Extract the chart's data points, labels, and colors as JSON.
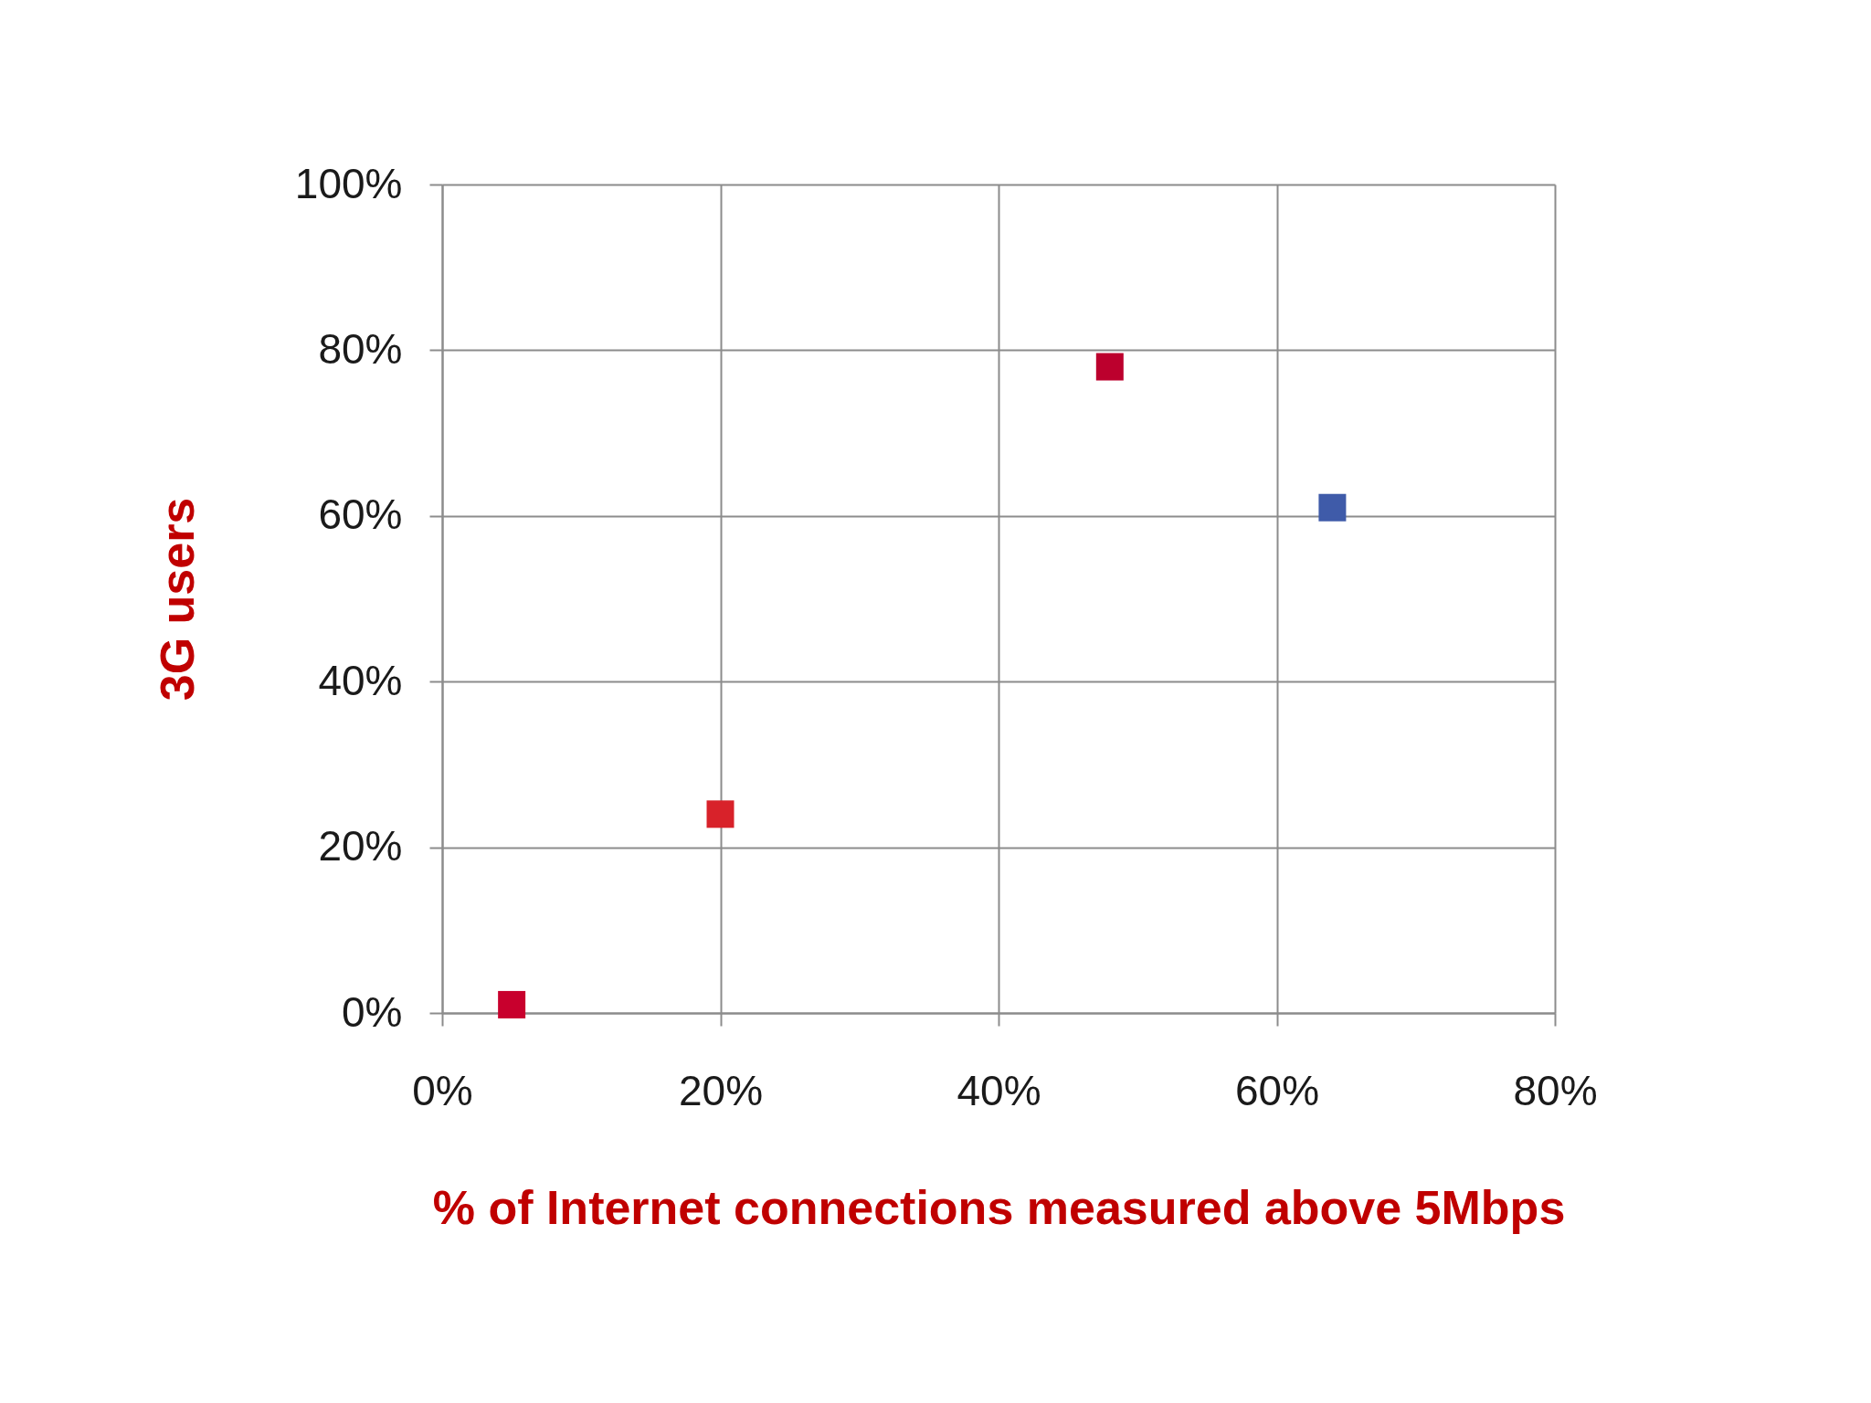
{
  "chart_data": {
    "type": "scatter",
    "xlabel": "% of Internet connections measured above 5Mbps",
    "ylabel": "3G users",
    "x": [
      5,
      20,
      48,
      64
    ],
    "values": [
      1,
      24,
      78,
      61
    ],
    "colors": [
      "#c8002d",
      "#d8222a",
      "#bc002d",
      "#3f5ba9"
    ],
    "marker": "square",
    "xlim": [
      0,
      80
    ],
    "ylim": [
      0,
      100
    ],
    "xticks": [
      {
        "value": 0,
        "label": "0%"
      },
      {
        "value": 20,
        "label": "20%"
      },
      {
        "value": 40,
        "label": "40%"
      },
      {
        "value": 60,
        "label": "60%"
      },
      {
        "value": 80,
        "label": "80%"
      }
    ],
    "yticks": [
      {
        "value": 0,
        "label": "0%"
      },
      {
        "value": 20,
        "label": "20%"
      },
      {
        "value": 40,
        "label": "40%"
      },
      {
        "value": 60,
        "label": "60%"
      },
      {
        "value": 80,
        "label": "80%"
      },
      {
        "value": 100,
        "label": "100%"
      }
    ],
    "grid": true,
    "legend": false
  }
}
